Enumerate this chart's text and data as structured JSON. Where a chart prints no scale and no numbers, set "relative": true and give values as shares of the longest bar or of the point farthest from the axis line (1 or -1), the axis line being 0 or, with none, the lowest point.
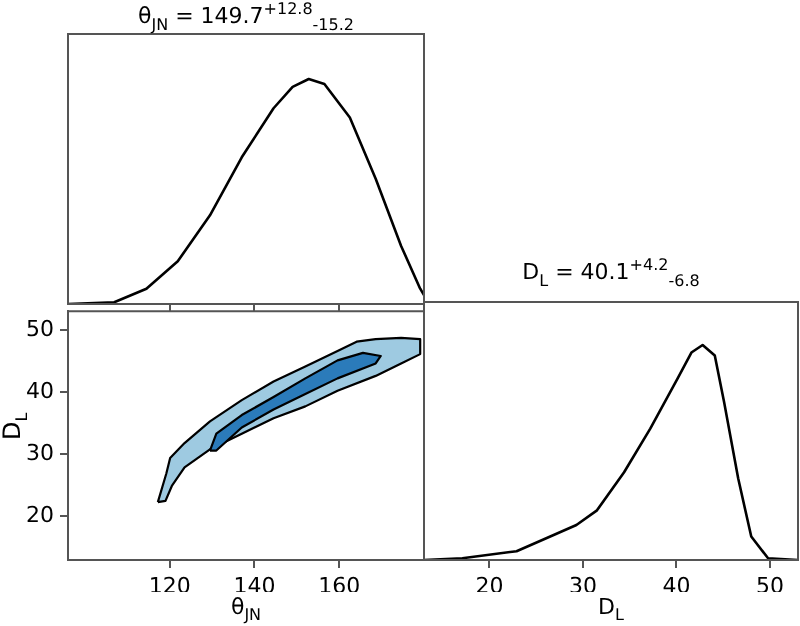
{
  "chart_data": [
    {
      "type": "line",
      "title": "θ$_{JN}$ = 149.7$^{+12.8}$$_{-15.2}$",
      "relative": true,
      "color": "#000000",
      "xlim": [
        96,
        180
      ],
      "xticks": [
        {
          "value": 120,
          "label": null
        },
        {
          "value": 140,
          "label": null
        },
        {
          "value": 160,
          "label": null
        }
      ],
      "tick_labels": false,
      "legend": false,
      "grid": false,
      "x": [
        96,
        106.9,
        114.5,
        121.9,
        129.5,
        137.0,
        144.5,
        149.0,
        152.8,
        156.5,
        162.5,
        168.6,
        174.6,
        179.1,
        180
      ],
      "values": [
        0,
        0.008,
        0.068,
        0.19,
        0.394,
        0.652,
        0.87,
        0.965,
        1,
        0.978,
        0.829,
        0.557,
        0.258,
        0.068,
        0.04
      ]
    },
    {
      "type": "area",
      "xlabel": "θ$_{JN}$",
      "ylabel": "D$_{L}$",
      "xlim": [
        96,
        180
      ],
      "xticks": [
        120,
        140,
        160
      ],
      "ylim": [
        13,
        53
      ],
      "yticks": [
        20,
        30,
        40,
        50
      ],
      "legend": false,
      "grid": false,
      "series": [
        {
          "color": "#9ecae1",
          "x": [
            117.2,
            119.2,
            120.1,
            123.5,
            129.5,
            137.0,
            144.5,
            152.0,
            159.6,
            164.1,
            168.6,
            174.6,
            179.1,
            179.1,
            174.6,
            168.6,
            159.6,
            152.0,
            144.5,
            137.0,
            129.5,
            123.5,
            120.5,
            119.0,
            117.2
          ],
          "values": [
            22.3,
            26.9,
            29.4,
            31.8,
            35.3,
            38.7,
            41.7,
            44.1,
            46.6,
            48.1,
            48.5,
            48.7,
            48.5,
            46.1,
            44.6,
            42.6,
            40.2,
            37.7,
            35.8,
            33.3,
            30.8,
            27.9,
            24.9,
            22.5,
            22.3
          ]
        },
        {
          "color": "#2b7bba",
          "x": [
            129.5,
            131.0,
            137.0,
            144.5,
            152.0,
            159.6,
            165.6,
            169.8,
            168.6,
            159.6,
            152.0,
            144.5,
            137.0,
            131.0,
            129.5
          ],
          "values": [
            30.6,
            33.3,
            36.3,
            39.2,
            42.2,
            45.1,
            46.3,
            45.8,
            44.6,
            42.2,
            39.7,
            37.2,
            34.3,
            30.6,
            30.6
          ]
        }
      ]
    },
    {
      "type": "line",
      "title": "D$_{L}$ = 40.1$^{+4.2}$$_{-6.8}$",
      "xlabel": "D$_{L}$",
      "relative": true,
      "color": "#000000",
      "xlim": [
        13,
        53
      ],
      "xticks": [
        20,
        30,
        40,
        50
      ],
      "tick_labels": "x",
      "legend": false,
      "grid": false,
      "x": [
        13,
        17.1,
        22.9,
        26.5,
        29.3,
        31.5,
        34.4,
        37.2,
        40.1,
        41.6,
        42.8,
        44.1,
        45.1,
        46.6,
        48.0,
        49.8,
        53
      ],
      "values": [
        0,
        0.008,
        0.041,
        0.109,
        0.163,
        0.231,
        0.408,
        0.611,
        0.842,
        0.965,
        1,
        0.951,
        0.734,
        0.38,
        0.109,
        0.008,
        0
      ]
    }
  ]
}
